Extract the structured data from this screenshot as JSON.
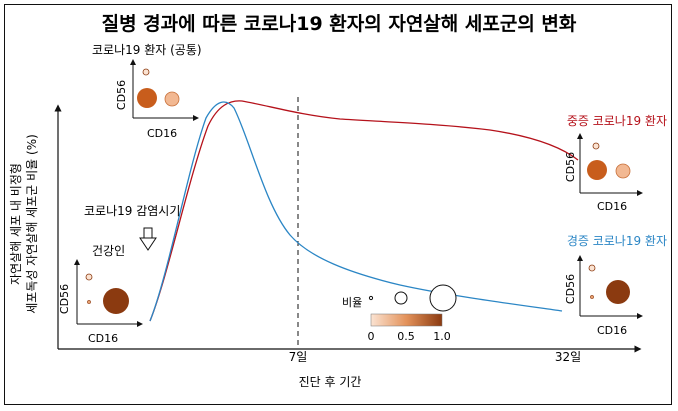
{
  "title": "질병 경과에 따른 코로나19 환자의 자연살해 세포군의 변화",
  "x_axis": {
    "title": "진단 후 기간",
    "tick_7": "7일",
    "tick_32": "32일"
  },
  "y_axis": {
    "title_line1": "자연살해 세포 내 비정형",
    "title_line2": "세포독성 자연살해 세포군 비율 (%)"
  },
  "annotations": {
    "healthy": "건강인",
    "infection": "코로나19 감염시기",
    "common_panel": "코로나19 환자 (공통)",
    "severe": "중증 코로나19 환자",
    "mild": "경증 코로나19 환자"
  },
  "mini_plot_labels": {
    "y": "CD56",
    "x": "CD16"
  },
  "legend": {
    "size_label": "비율",
    "scale_ticks": [
      "0",
      "0.5",
      "1.0"
    ]
  },
  "colors": {
    "severe_line": "#b5121b",
    "mild_line": "#2b86c5",
    "scale_low": "#fbe3d2",
    "scale_high": "#8b3a10"
  }
}
